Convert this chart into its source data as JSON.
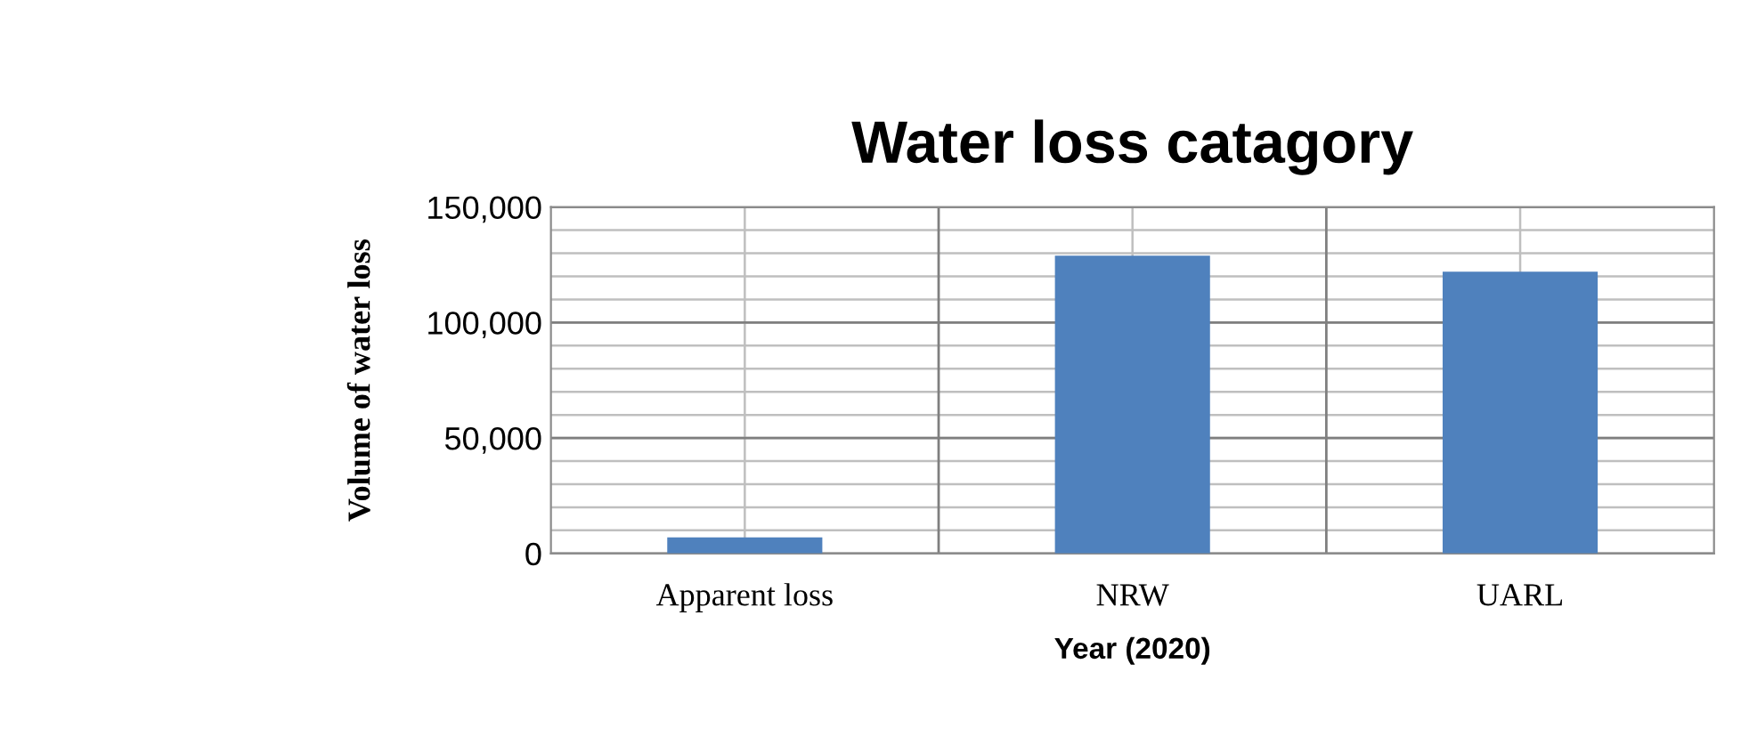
{
  "chart_data": {
    "type": "bar",
    "title": "Water loss catagory",
    "xlabel": "Year (2020)",
    "ylabel": "Volume of water loss",
    "categories": [
      "Apparent loss",
      "NRW",
      "UARL"
    ],
    "values": [
      7000,
      129000,
      122000
    ],
    "color": "#4f81bd",
    "ylim": [
      0,
      150000
    ],
    "yticks": [
      {
        "value": 0,
        "label": "0"
      },
      {
        "value": 50000,
        "label": "50,000"
      },
      {
        "value": 100000,
        "label": "100,000"
      },
      {
        "value": 150000,
        "label": "150,000"
      }
    ],
    "grid": true,
    "legend": false
  }
}
